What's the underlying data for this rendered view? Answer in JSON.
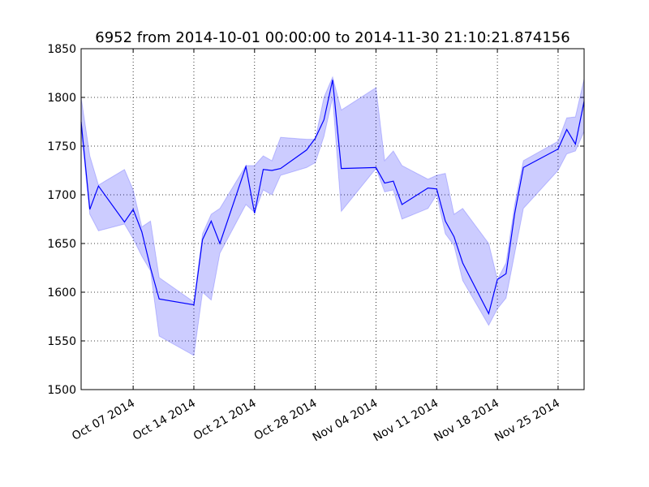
{
  "chart_data": {
    "type": "line",
    "title": "6952 from 2014-10-01 00:00:00 to 2014-11-30 21:10:21.874156",
    "x": [
      "2014-10-01",
      "2014-10-02",
      "2014-10-03",
      "2014-10-06",
      "2014-10-07",
      "2014-10-08",
      "2014-10-09",
      "2014-10-10",
      "2014-10-14",
      "2014-10-15",
      "2014-10-16",
      "2014-10-17",
      "2014-10-20",
      "2014-10-21",
      "2014-10-22",
      "2014-10-23",
      "2014-10-24",
      "2014-10-27",
      "2014-10-28",
      "2014-10-29",
      "2014-10-30",
      "2014-10-31",
      "2014-11-04",
      "2014-11-05",
      "2014-11-06",
      "2014-11-07",
      "2014-11-10",
      "2014-11-11",
      "2014-11-12",
      "2014-11-13",
      "2014-11-14",
      "2014-11-17",
      "2014-11-18",
      "2014-11-19",
      "2014-11-20",
      "2014-11-21",
      "2014-11-25",
      "2014-11-26",
      "2014-11-27",
      "2014-11-28"
    ],
    "values": [
      1775,
      1685,
      1709,
      1672,
      1685,
      1662,
      1625,
      1593,
      1587,
      1654,
      1673,
      1650,
      1729,
      1681,
      1726,
      1725,
      1727,
      1746,
      1758,
      1777,
      1818,
      1727,
      1728,
      1712,
      1714,
      1690,
      1707,
      1706,
      1673,
      1657,
      1630,
      1578,
      1613,
      1619,
      1681,
      1728,
      1747,
      1767,
      1752,
      1796
    ],
    "upper": [
      1800,
      1740,
      1710,
      1726,
      1705,
      1667,
      1673,
      1615,
      1590,
      1660,
      1680,
      1686,
      1730,
      1730,
      1740,
      1735,
      1759,
      1757,
      1757,
      1800,
      1821,
      1787,
      1810,
      1735,
      1745,
      1730,
      1716,
      1720,
      1722,
      1680,
      1686,
      1650,
      1613,
      1630,
      1690,
      1735,
      1755,
      1779,
      1780,
      1819
    ],
    "lower": [
      1767,
      1680,
      1663,
      1670,
      1655,
      1637,
      1622,
      1555,
      1535,
      1600,
      1592,
      1640,
      1690,
      1682,
      1705,
      1700,
      1720,
      1728,
      1733,
      1760,
      1800,
      1683,
      1727,
      1703,
      1705,
      1675,
      1686,
      1700,
      1660,
      1648,
      1612,
      1566,
      1583,
      1594,
      1640,
      1686,
      1725,
      1742,
      1745,
      1765
    ],
    "color": "#0000ff",
    "band_color": "#0000ff",
    "xlim": [
      "2014-10-01",
      "2014-11-28"
    ],
    "xticks": [
      {
        "value": "2014-10-07",
        "label": "Oct 07 2014"
      },
      {
        "value": "2014-10-14",
        "label": "Oct 14 2014"
      },
      {
        "value": "2014-10-21",
        "label": "Oct 21 2014"
      },
      {
        "value": "2014-10-28",
        "label": "Oct 28 2014"
      },
      {
        "value": "2014-11-04",
        "label": "Nov 04 2014"
      },
      {
        "value": "2014-11-11",
        "label": "Nov 11 2014"
      },
      {
        "value": "2014-11-18",
        "label": "Nov 18 2014"
      },
      {
        "value": "2014-11-25",
        "label": "Nov 25 2014"
      }
    ],
    "ylim": [
      1500,
      1850
    ],
    "yticks": [
      1500,
      1550,
      1600,
      1650,
      1700,
      1750,
      1800,
      1850
    ],
    "grid": true
  }
}
